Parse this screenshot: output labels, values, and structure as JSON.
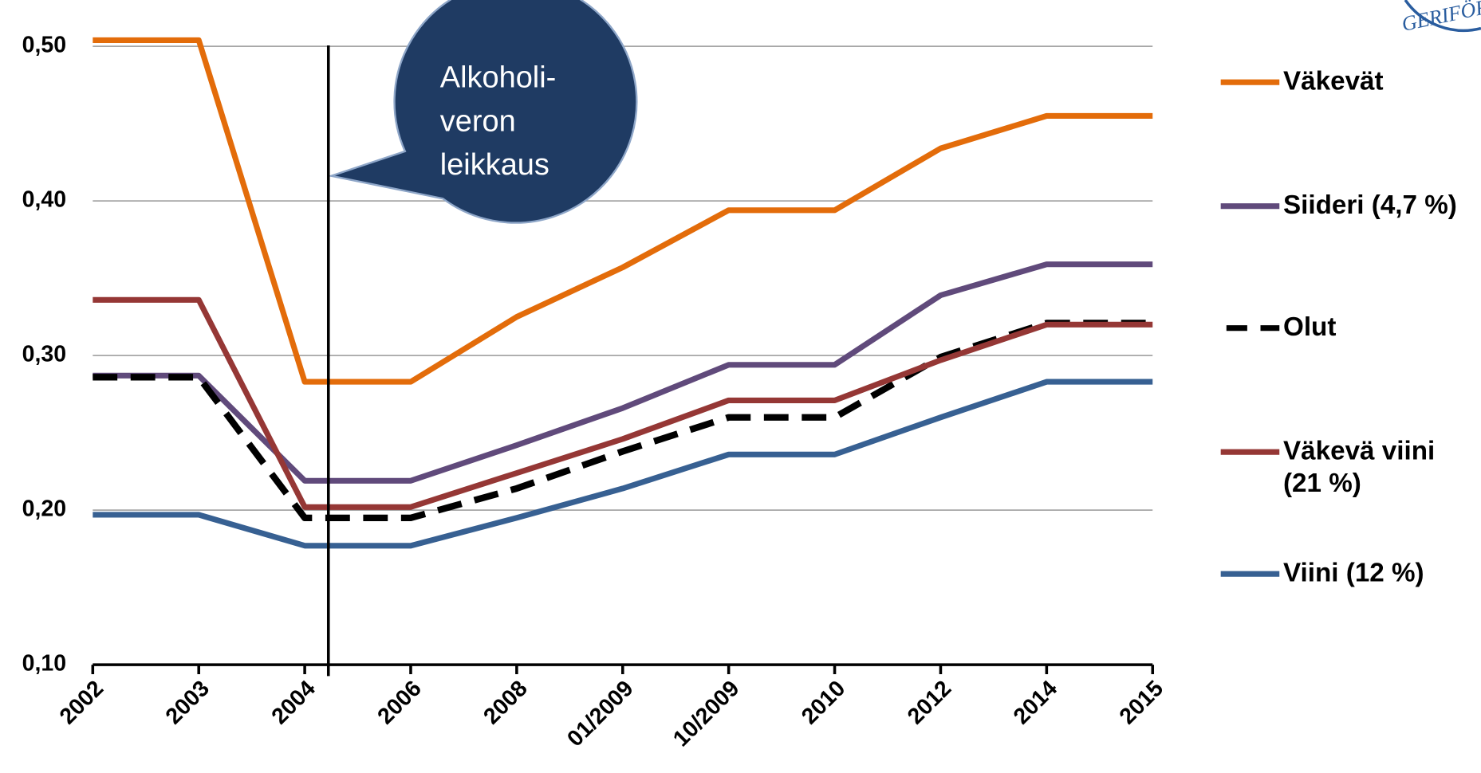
{
  "chart_data": {
    "type": "line",
    "logo": "GERIFÖRBU",
    "annotation": [
      "Alkoholi-",
      "veron",
      "leikkaus"
    ],
    "categories": [
      "2002",
      "2003",
      "2004",
      "2006",
      "2008",
      "01/2009",
      "10/2009",
      "2010",
      "2012",
      "2014",
      "2015"
    ],
    "series": [
      {
        "name": "Väkevät",
        "color": "#e36c0a",
        "values": [
          0.504,
          0.504,
          0.283,
          0.283,
          0.325,
          0.357,
          0.394,
          0.394,
          0.434,
          0.455,
          0.455
        ]
      },
      {
        "name": "Siideri (4,7 %)",
        "color": "#604a7b",
        "values": [
          0.287,
          0.287,
          0.219,
          0.219,
          0.242,
          0.266,
          0.294,
          0.294,
          0.339,
          0.359,
          0.359
        ]
      },
      {
        "name": "Olut",
        "color": "#000000",
        "dashed": true,
        "values": [
          0.286,
          0.286,
          0.195,
          0.195,
          0.214,
          0.238,
          0.26,
          0.26,
          0.299,
          0.321,
          0.321
        ]
      },
      {
        "name": "Väkevä viini (21 %)",
        "color": "#953735",
        "values": [
          0.336,
          0.336,
          0.202,
          0.202,
          0.224,
          0.246,
          0.271,
          0.271,
          0.297,
          0.32,
          0.32
        ]
      },
      {
        "name": "Viini (12 %)",
        "color": "#376092",
        "values": [
          0.197,
          0.197,
          0.177,
          0.177,
          0.195,
          0.214,
          0.236,
          0.236,
          0.26,
          0.283,
          0.283
        ]
      }
    ],
    "ylim": [
      0.1,
      0.5
    ],
    "yticks": [
      {
        "value": 0.1,
        "label": "0,10"
      },
      {
        "value": 0.2,
        "label": "0,20"
      },
      {
        "value": 0.3,
        "label": "0,30"
      },
      {
        "value": 0.4,
        "label": "0,40"
      },
      {
        "value": 0.5,
        "label": "0,50"
      }
    ],
    "grid": true
  }
}
